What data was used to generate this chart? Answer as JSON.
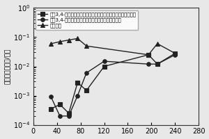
{
  "series": [
    {
      "label": "聚（3,4-二氧乙基）噪吞复合金属涂料（掃杂馒酸钓二水合物）",
      "marker": "s",
      "linestyle": "-",
      "color": "#222222",
      "x": [
        30,
        45,
        60,
        75,
        90,
        120,
        195,
        210,
        240
      ],
      "y": [
        0.00035,
        0.0005,
        0.00025,
        0.0028,
        0.0015,
        0.01,
        0.025,
        0.012,
        0.028
      ]
    },
    {
      "label": "聚（3,4-二氧乙基）噪吞复合金属涂料（掃杂磷酸）",
      "marker": "o",
      "linestyle": "-",
      "color": "#222222",
      "x": [
        30,
        45,
        60,
        75,
        90,
        120,
        195,
        210,
        240
      ],
      "y": [
        0.0009,
        0.0002,
        0.0002,
        0.001,
        0.006,
        0.015,
        0.012,
        0.012,
        0.025
      ]
    },
    {
      "label": "环氧基底",
      "marker": "^",
      "linestyle": "-",
      "color": "#222222",
      "x": [
        30,
        45,
        60,
        75,
        90,
        195,
        210,
        240
      ],
      "y": [
        0.06,
        0.07,
        0.08,
        0.09,
        0.05,
        0.025,
        0.06,
        0.028
      ]
    }
  ],
  "ylabel": "腥蚀速率（毫米/年）",
  "xlim": [
    0,
    280
  ],
  "xticks": [
    0,
    40,
    80,
    120,
    160,
    200,
    240,
    280
  ],
  "ylim": [
    0.0001,
    1.0
  ],
  "background_color": "#e8e8e8",
  "legend_fontsize": 5.0,
  "ylabel_fontsize": 6.5,
  "tick_fontsize": 7
}
